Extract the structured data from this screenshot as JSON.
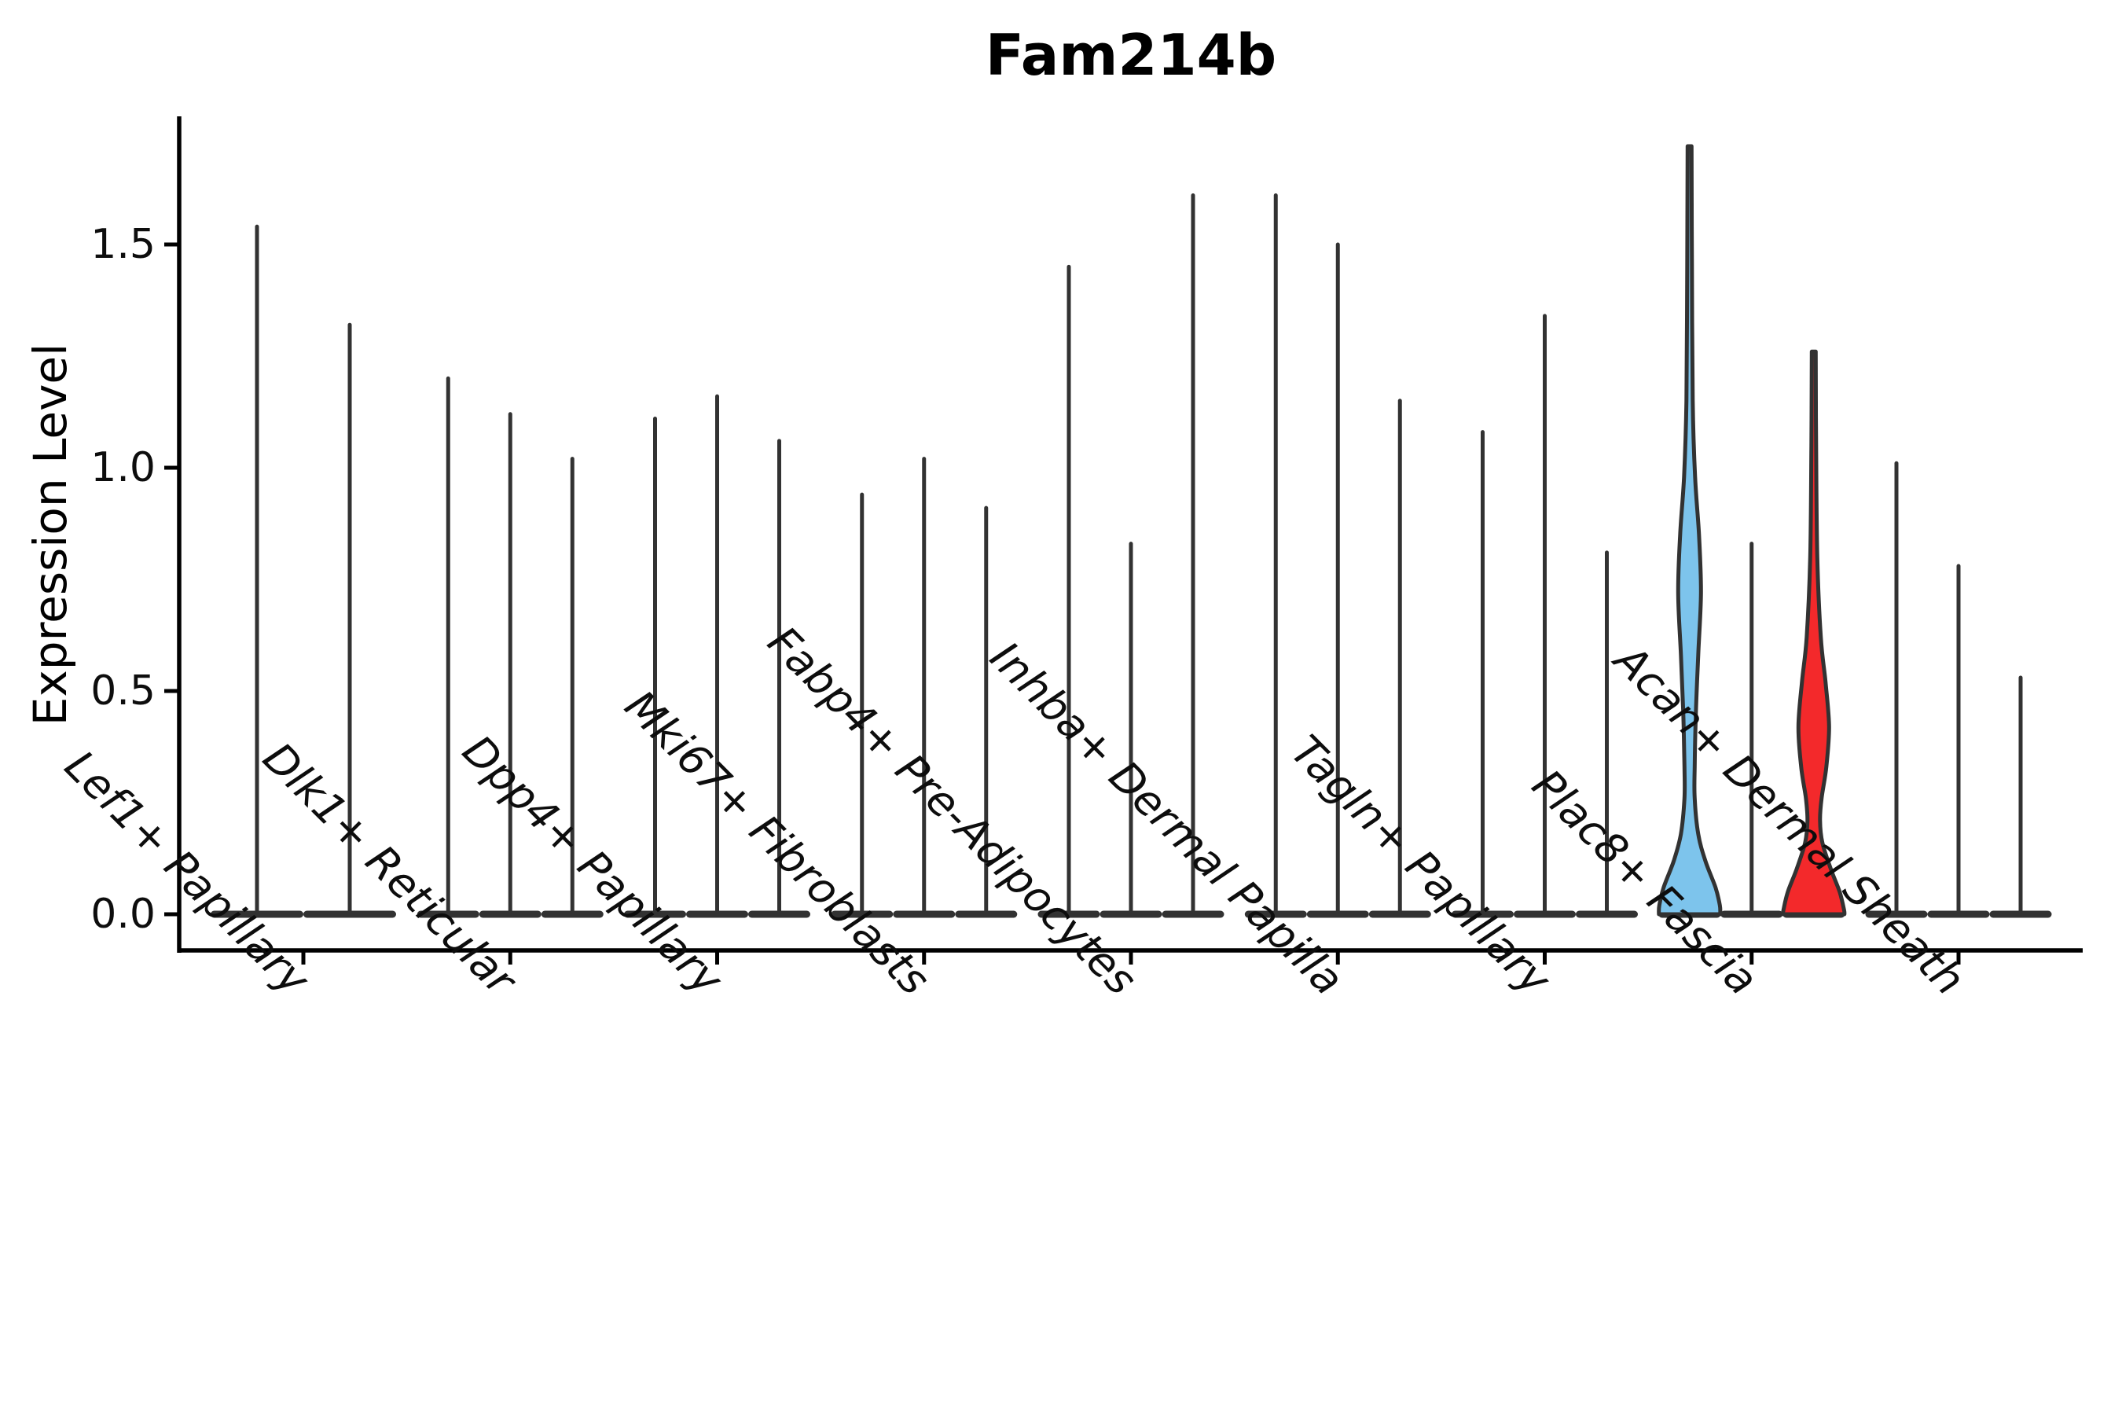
{
  "chart_data": {
    "type": "violin",
    "title": "Fam214b",
    "ylabel": "Expression Level",
    "xlabel": "",
    "ylim": [
      -0.08,
      1.787
    ],
    "grid": false,
    "legend": "none",
    "yticks": [
      {
        "value": 0.0,
        "label": "0.0"
      },
      {
        "value": 0.5,
        "label": "0.5"
      },
      {
        "value": 1.0,
        "label": "1.0"
      },
      {
        "value": 1.5,
        "label": "1.5"
      }
    ],
    "categories": [
      "Lef1+ Papillary",
      "Dlk1+ Reticular",
      "Dpp4+ Papillary",
      "Mki67+ Fibroblasts",
      "Fabp4+ Pre-Adipocytes",
      "Inhba+ Dermal Papilla",
      "Tagln+ Papillary",
      "Plac8+ Fascia",
      "Acan+ Dermal Sheath"
    ],
    "groups": [
      {
        "label": "Lef1+ Papillary",
        "violins": [
          {
            "max": 1.54
          },
          {
            "max": 1.32
          }
        ]
      },
      {
        "label": "Dlk1+ Reticular",
        "violins": [
          {
            "max": 1.2
          },
          {
            "max": 1.12
          },
          {
            "max": 1.02
          }
        ]
      },
      {
        "label": "Dpp4+ Papillary",
        "violins": [
          {
            "max": 1.11
          },
          {
            "max": 1.16
          },
          {
            "max": 1.06
          }
        ]
      },
      {
        "label": "Mki67+ Fibroblasts",
        "violins": [
          {
            "max": 0.94
          },
          {
            "max": 1.02
          },
          {
            "max": 0.91
          }
        ]
      },
      {
        "label": "Fabp4+ Pre-Adipocytes",
        "violins": [
          {
            "max": 1.45
          },
          {
            "max": 0.83
          },
          {
            "max": 1.61
          }
        ]
      },
      {
        "label": "Inhba+ Dermal Papilla",
        "violins": [
          {
            "max": 1.61
          },
          {
            "max": 1.5
          },
          {
            "max": 1.15
          }
        ]
      },
      {
        "label": "Tagln+ Papillary",
        "violins": [
          {
            "max": 1.08
          },
          {
            "max": 1.34
          },
          {
            "max": 0.81
          }
        ]
      },
      {
        "label": "Plac8+ Fascia",
        "violins": [
          {
            "max": 1.72,
            "fill": "#7dc4ec",
            "profile": [
              [
                1.72,
                2.5
              ],
              [
                1.45,
                3
              ],
              [
                1.15,
                4
              ],
              [
                0.98,
                7
              ],
              [
                0.85,
                12
              ],
              [
                0.72,
                14.5
              ],
              [
                0.58,
                11
              ],
              [
                0.45,
                8
              ],
              [
                0.33,
                6.5
              ],
              [
                0.26,
                6.5
              ],
              [
                0.18,
                11
              ],
              [
                0.12,
                20
              ],
              [
                0.06,
                33
              ],
              [
                0.02,
                38.5
              ],
              [
                0.0,
                39
              ]
            ]
          },
          {
            "max": 0.83
          },
          {
            "max": 1.26,
            "fill": "#f3292b",
            "profile": [
              [
                1.26,
                2.5
              ],
              [
                1.05,
                3
              ],
              [
                0.8,
                4.5
              ],
              [
                0.62,
                9
              ],
              [
                0.52,
                15
              ],
              [
                0.42,
                19.5
              ],
              [
                0.33,
                16
              ],
              [
                0.26,
                10
              ],
              [
                0.21,
                8
              ],
              [
                0.16,
                11
              ],
              [
                0.1,
                22
              ],
              [
                0.05,
                33
              ],
              [
                0.01,
                38.5
              ],
              [
                0.0,
                39
              ]
            ]
          }
        ]
      },
      {
        "label": "Acan+ Dermal Sheath",
        "violins": [
          {
            "max": 1.01
          },
          {
            "max": 0.78
          },
          {
            "max": 0.53
          }
        ]
      }
    ],
    "colors": {
      "violin_stroke": "#323232",
      "spine": "#000000",
      "tick": "#000000",
      "highlight_blue": "#7dc4ec",
      "highlight_red": "#f3292b"
    }
  }
}
